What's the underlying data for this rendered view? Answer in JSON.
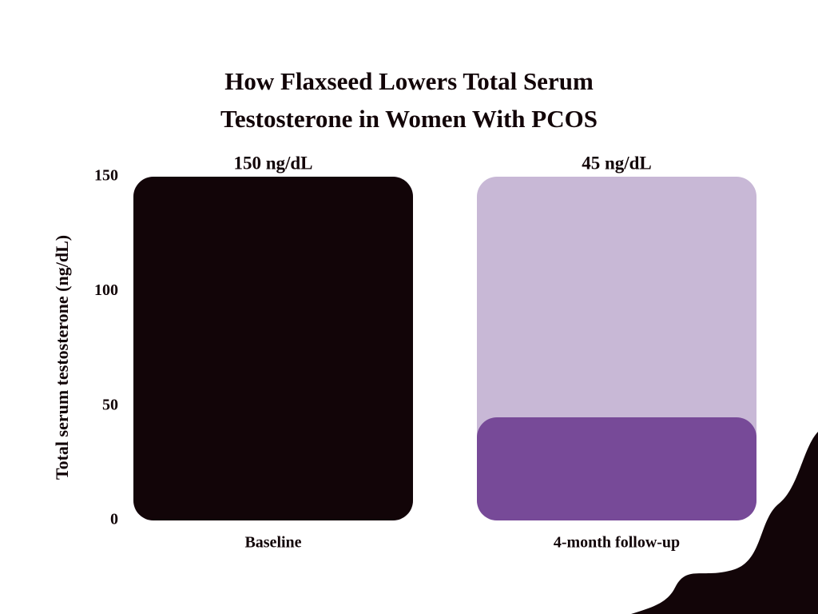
{
  "chart_data": {
    "type": "bar",
    "title": "How Flaxseed Lowers Total Serum Testosterone in Women With PCOS",
    "y_label": "Total serum testosterone (ng/dL)",
    "categories": [
      "Baseline",
      "4-month follow-up"
    ],
    "values": [
      150,
      45
    ],
    "value_labels": [
      "150 ng/dL",
      "45 ng/dL"
    ],
    "colors": [
      "#120508",
      "#774a98"
    ],
    "track_color": "#c8b8d6",
    "ylim": [
      0,
      150
    ],
    "yticks": [
      0,
      50,
      100,
      150
    ]
  }
}
